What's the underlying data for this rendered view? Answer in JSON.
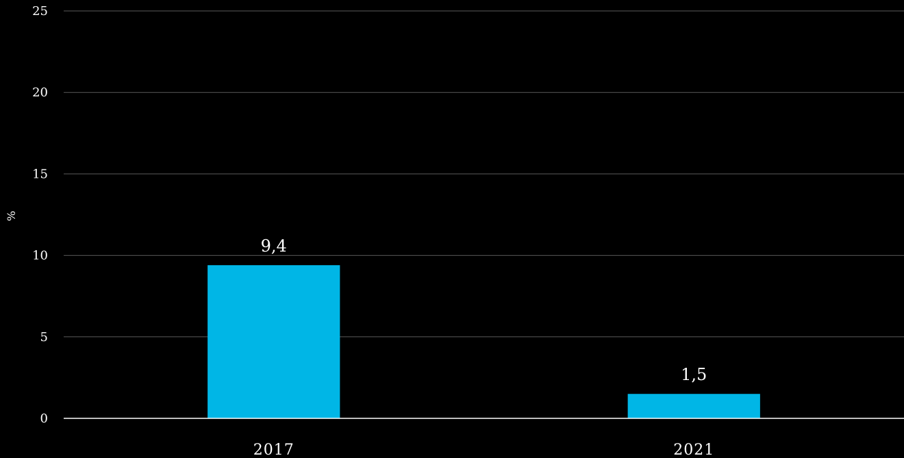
{
  "chart_data": {
    "type": "bar",
    "categories": [
      "2017",
      "2021"
    ],
    "values": [
      9.4,
      1.5
    ],
    "value_labels": [
      "9,4",
      "1,5"
    ],
    "ylabel": "%",
    "ylim": [
      0,
      25
    ],
    "yticks": [
      0,
      5,
      10,
      15,
      20,
      25
    ],
    "grid": true,
    "colors": {
      "background": "#000000",
      "bar": "#00b6e6",
      "grid": "#5a5a5a",
      "text": "#ffffff"
    }
  }
}
